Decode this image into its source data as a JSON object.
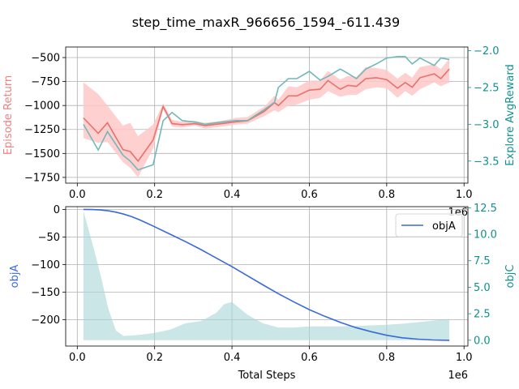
{
  "title": "step_time_maxR_966656_1594_-611.439",
  "colors": {
    "return_line": "#e8706b",
    "return_band": "#ffc8c8",
    "explore_line": "#72b8b9",
    "objA_line": "#3a69d8",
    "objC_fill": "#a9d6d7",
    "right_axis_text": "#108f8f",
    "left_axis_return_text": "#f08080",
    "left_axis_objA_text": "#3a69d8",
    "grid": "#b0b0b0"
  },
  "chart_data": [
    {
      "type": "line",
      "panel": "top",
      "ylabel": "Episode Return",
      "y2label": "Explore AvgReward",
      "xlim": [
        -0.03,
        1.01
      ],
      "ylim": [
        -1810,
        -390
      ],
      "y2lim": [
        -3.8,
        -1.95
      ],
      "xticks": [
        0.0,
        0.2,
        0.4,
        0.6,
        0.8,
        1.0
      ],
      "xtick_labels": [
        "0.0",
        "0.2",
        "0.4",
        "0.6",
        "0.8",
        "1.0"
      ],
      "x_offset_label": "1e6",
      "yticks": [
        -500,
        -750,
        -1000,
        -1250,
        -1500,
        -1750
      ],
      "ytick_labels": [
        "−500",
        "−750",
        "−1000",
        "−1250",
        "−1500",
        "−1750"
      ],
      "y2ticks": [
        -2.0,
        -2.5,
        -3.0,
        -3.5
      ],
      "y2tick_labels": [
        "−2.0",
        "−2.5",
        "−3.0",
        "−3.5"
      ],
      "grid": true,
      "x": [
        0.016,
        0.054,
        0.078,
        0.118,
        0.137,
        0.157,
        0.196,
        0.222,
        0.245,
        0.271,
        0.304,
        0.33,
        0.373,
        0.41,
        0.44,
        0.484,
        0.51,
        0.52,
        0.546,
        0.568,
        0.6,
        0.628,
        0.648,
        0.68,
        0.7,
        0.722,
        0.746,
        0.773,
        0.8,
        0.828,
        0.848,
        0.866,
        0.886,
        0.923,
        0.94,
        0.962
      ],
      "series": [
        {
          "role": "return_mean",
          "values": [
            -1130,
            -1290,
            -1180,
            -1460,
            -1480,
            -1580,
            -1360,
            -1010,
            -1190,
            -1200,
            -1190,
            -1210,
            -1190,
            -1170,
            -1160,
            -1060,
            -970,
            -1000,
            -900,
            -900,
            -840,
            -830,
            -740,
            -830,
            -790,
            -800,
            -720,
            -710,
            -730,
            -820,
            -760,
            -810,
            -710,
            -670,
            -720,
            -620
          ],
          "lower": [
            -1340,
            -1390,
            -1380,
            -1590,
            -1650,
            -1750,
            -1450,
            -1040,
            -1220,
            -1230,
            -1210,
            -1240,
            -1220,
            -1200,
            -1190,
            -1110,
            -1050,
            -1070,
            -1000,
            -990,
            -940,
            -920,
            -850,
            -910,
            -890,
            -890,
            -830,
            -810,
            -820,
            -920,
            -850,
            -900,
            -830,
            -760,
            -800,
            -760
          ],
          "upper": [
            -760,
            -880,
            -1000,
            -1210,
            -1180,
            -1320,
            -1200,
            -980,
            -1150,
            -1170,
            -1160,
            -1180,
            -1160,
            -1130,
            -1120,
            -1010,
            -900,
            -940,
            -800,
            -810,
            -740,
            -740,
            -640,
            -730,
            -690,
            -700,
            -600,
            -610,
            -630,
            -720,
            -660,
            -710,
            -600,
            -570,
            -620,
            -510
          ]
        },
        {
          "role": "explore_avg_reward",
          "axis": "right",
          "values": [
            -3.0,
            -3.35,
            -3.1,
            -3.42,
            -3.5,
            -3.62,
            -3.55,
            -2.95,
            -2.84,
            -2.95,
            -2.97,
            -3.0,
            -2.97,
            -2.95,
            -2.95,
            -2.8,
            -2.7,
            -2.5,
            -2.38,
            -2.38,
            -2.28,
            -2.4,
            -2.35,
            -2.25,
            -2.31,
            -2.38,
            -2.25,
            -2.18,
            -2.1,
            -2.08,
            -2.08,
            -2.18,
            -2.1,
            -2.2,
            -2.1,
            -2.12
          ]
        }
      ]
    },
    {
      "type": "line",
      "panel": "bottom",
      "xlabel": "Total Steps",
      "x_offset_label": "1e6",
      "ylabel": "objA",
      "y2label": "objC",
      "legend": {
        "entries": [
          "objA"
        ],
        "placement": "top-right"
      },
      "xlim": [
        -0.03,
        1.01
      ],
      "ylim": [
        -248,
        5
      ],
      "y2lim": [
        -0.55,
        12.6
      ],
      "xticks": [
        0.0,
        0.2,
        0.4,
        0.6,
        0.8,
        1.0
      ],
      "xtick_labels": [
        "0.0",
        "0.2",
        "0.4",
        "0.6",
        "0.8",
        "1.0"
      ],
      "yticks": [
        0,
        -50,
        -100,
        -150,
        -200
      ],
      "ytick_labels": [
        "0",
        "−50",
        "−100",
        "−150",
        "−200"
      ],
      "y2ticks": [
        0.0,
        2.5,
        5.0,
        7.5,
        10.0,
        12.5
      ],
      "y2tick_labels": [
        "0.0",
        "2.5",
        "5.0",
        "7.5",
        "10.0",
        "12.5"
      ],
      "grid": true,
      "series": [
        {
          "name": "objA",
          "x": [
            0.016,
            0.04,
            0.06,
            0.08,
            0.1,
            0.12,
            0.14,
            0.16,
            0.18,
            0.2,
            0.24,
            0.28,
            0.32,
            0.36,
            0.4,
            0.44,
            0.48,
            0.52,
            0.56,
            0.6,
            0.64,
            0.68,
            0.72,
            0.76,
            0.8,
            0.84,
            0.88,
            0.92,
            0.962
          ],
          "values": [
            0,
            -0.3,
            -1,
            -2.5,
            -5,
            -8.5,
            -13,
            -18.5,
            -25,
            -31.5,
            -45,
            -58.5,
            -73,
            -88.5,
            -104,
            -120.5,
            -137,
            -153,
            -168,
            -182,
            -194,
            -205,
            -214.5,
            -222,
            -228.5,
            -233,
            -235.5,
            -237,
            -237.5
          ]
        },
        {
          "role": "objC",
          "axis": "right",
          "x": [
            0.016,
            0.04,
            0.06,
            0.08,
            0.1,
            0.12,
            0.16,
            0.2,
            0.24,
            0.28,
            0.32,
            0.36,
            0.38,
            0.4,
            0.44,
            0.48,
            0.52,
            0.56,
            0.6,
            0.64,
            0.68,
            0.72,
            0.76,
            0.8,
            0.84,
            0.88,
            0.92,
            0.962
          ],
          "values": [
            12.2,
            9.0,
            6.2,
            3.0,
            0.9,
            0.4,
            0.5,
            0.7,
            1.0,
            1.6,
            1.8,
            2.6,
            3.4,
            3.6,
            2.4,
            1.6,
            1.2,
            1.2,
            1.3,
            1.3,
            1.3,
            1.35,
            1.4,
            1.45,
            1.55,
            1.7,
            1.85,
            2.0
          ]
        }
      ]
    }
  ]
}
